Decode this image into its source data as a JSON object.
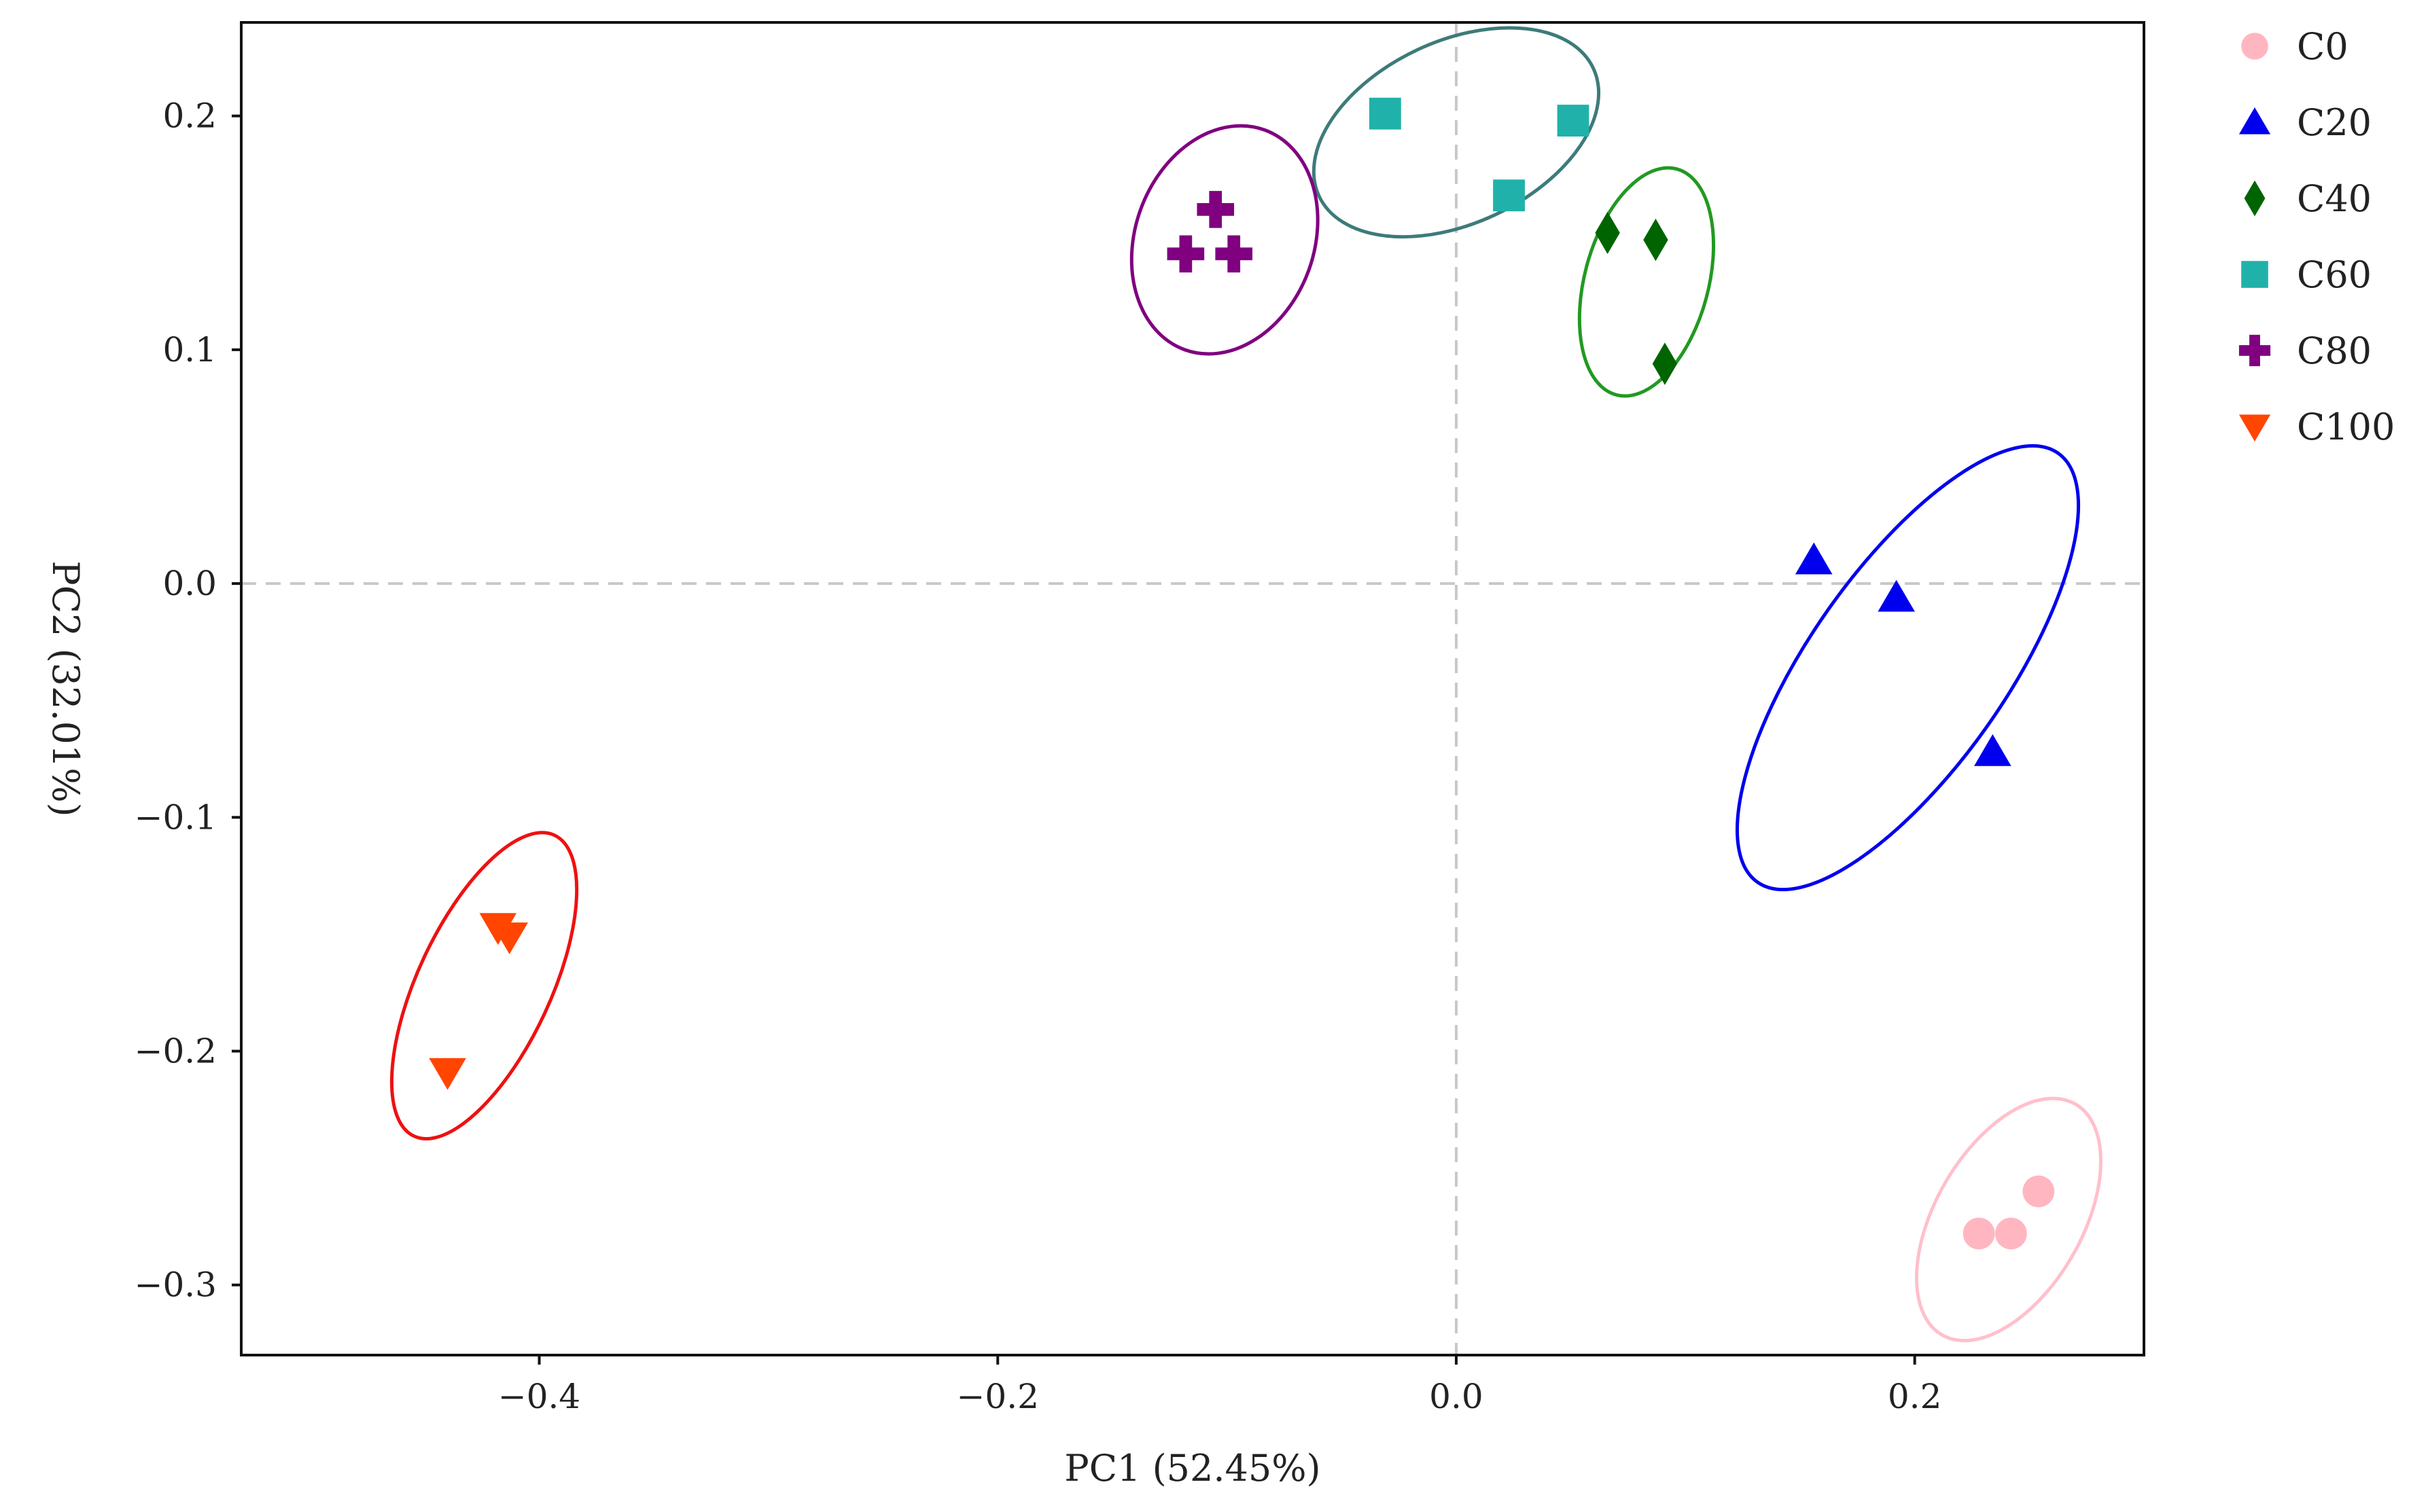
{
  "chart_data": {
    "type": "scatter",
    "title": "",
    "xlabel": "PC1 (52.45%)",
    "ylabel": "PC2 (32.01%)",
    "xlim": [
      -0.53,
      0.3
    ],
    "ylim": [
      -0.33,
      0.24
    ],
    "xticks": [
      -0.4,
      -0.2,
      0.0,
      0.2
    ],
    "yticks": [
      -0.3,
      -0.2,
      -0.1,
      0.0,
      0.1,
      0.2
    ],
    "xtick_labels": [
      "−0.4",
      "−0.2",
      "0.0",
      "0.2"
    ],
    "ytick_labels": [
      "−0.3",
      "−0.2",
      "−0.1",
      "0.0",
      "0.1",
      "0.2"
    ],
    "reference_lines": {
      "x": 0.0,
      "y": 0.0,
      "style": "dashed",
      "color": "#c8c8c8"
    },
    "legend_position": "outside-right-top",
    "grid": false,
    "series": [
      {
        "name": "C0",
        "marker": "circle",
        "color": "#ffb6c1",
        "ellipse_color": "#ffc0cb",
        "points": [
          [
            0.228,
            -0.278
          ],
          [
            0.242,
            -0.278
          ],
          [
            0.254,
            -0.26
          ]
        ],
        "ellipse": {
          "cx": 0.241,
          "cy": -0.272,
          "rx": 0.032,
          "ry": 0.057,
          "angle": 30
        }
      },
      {
        "name": "C20",
        "marker": "triangle-up",
        "color": "#0000ee",
        "ellipse_color": "#0000ee",
        "points": [
          [
            0.156,
            0.01
          ],
          [
            0.192,
            -0.006
          ],
          [
            0.234,
            -0.072
          ]
        ],
        "ellipse": {
          "cx": 0.197,
          "cy": -0.036,
          "rx": 0.043,
          "ry": 0.112,
          "angle": 35
        }
      },
      {
        "name": "C40",
        "marker": "diamond",
        "color": "#006400",
        "ellipse_color": "#229922",
        "points": [
          [
            0.066,
            0.15
          ],
          [
            0.087,
            0.147
          ],
          [
            0.091,
            0.094
          ]
        ],
        "ellipse": {
          "cx": 0.083,
          "cy": 0.129,
          "rx": 0.027,
          "ry": 0.05,
          "angle": 15
        }
      },
      {
        "name": "C60",
        "marker": "square",
        "color": "#20b2aa",
        "ellipse_color": "#3d7b7b",
        "points": [
          [
            -0.031,
            0.201
          ],
          [
            0.023,
            0.166
          ],
          [
            0.051,
            0.198
          ]
        ],
        "ellipse": {
          "cx": 0.0,
          "cy": 0.193,
          "rx": 0.066,
          "ry": 0.039,
          "angle": -25
        }
      },
      {
        "name": "C80",
        "marker": "plus",
        "color": "#800080",
        "ellipse_color": "#800080",
        "points": [
          [
            -0.105,
            0.16
          ],
          [
            -0.118,
            0.141
          ],
          [
            -0.097,
            0.141
          ]
        ],
        "ellipse": {
          "cx": -0.101,
          "cy": 0.147,
          "rx": 0.039,
          "ry": 0.05,
          "angle": 20
        }
      },
      {
        "name": "C100",
        "marker": "triangle-down",
        "color": "#ff4500",
        "ellipse_color": "#ee1111",
        "points": [
          [
            -0.418,
            -0.147
          ],
          [
            -0.413,
            -0.151
          ],
          [
            -0.44,
            -0.209
          ]
        ],
        "ellipse": {
          "cx": -0.424,
          "cy": -0.172,
          "rx": 0.029,
          "ry": 0.071,
          "angle": 25
        }
      }
    ]
  }
}
